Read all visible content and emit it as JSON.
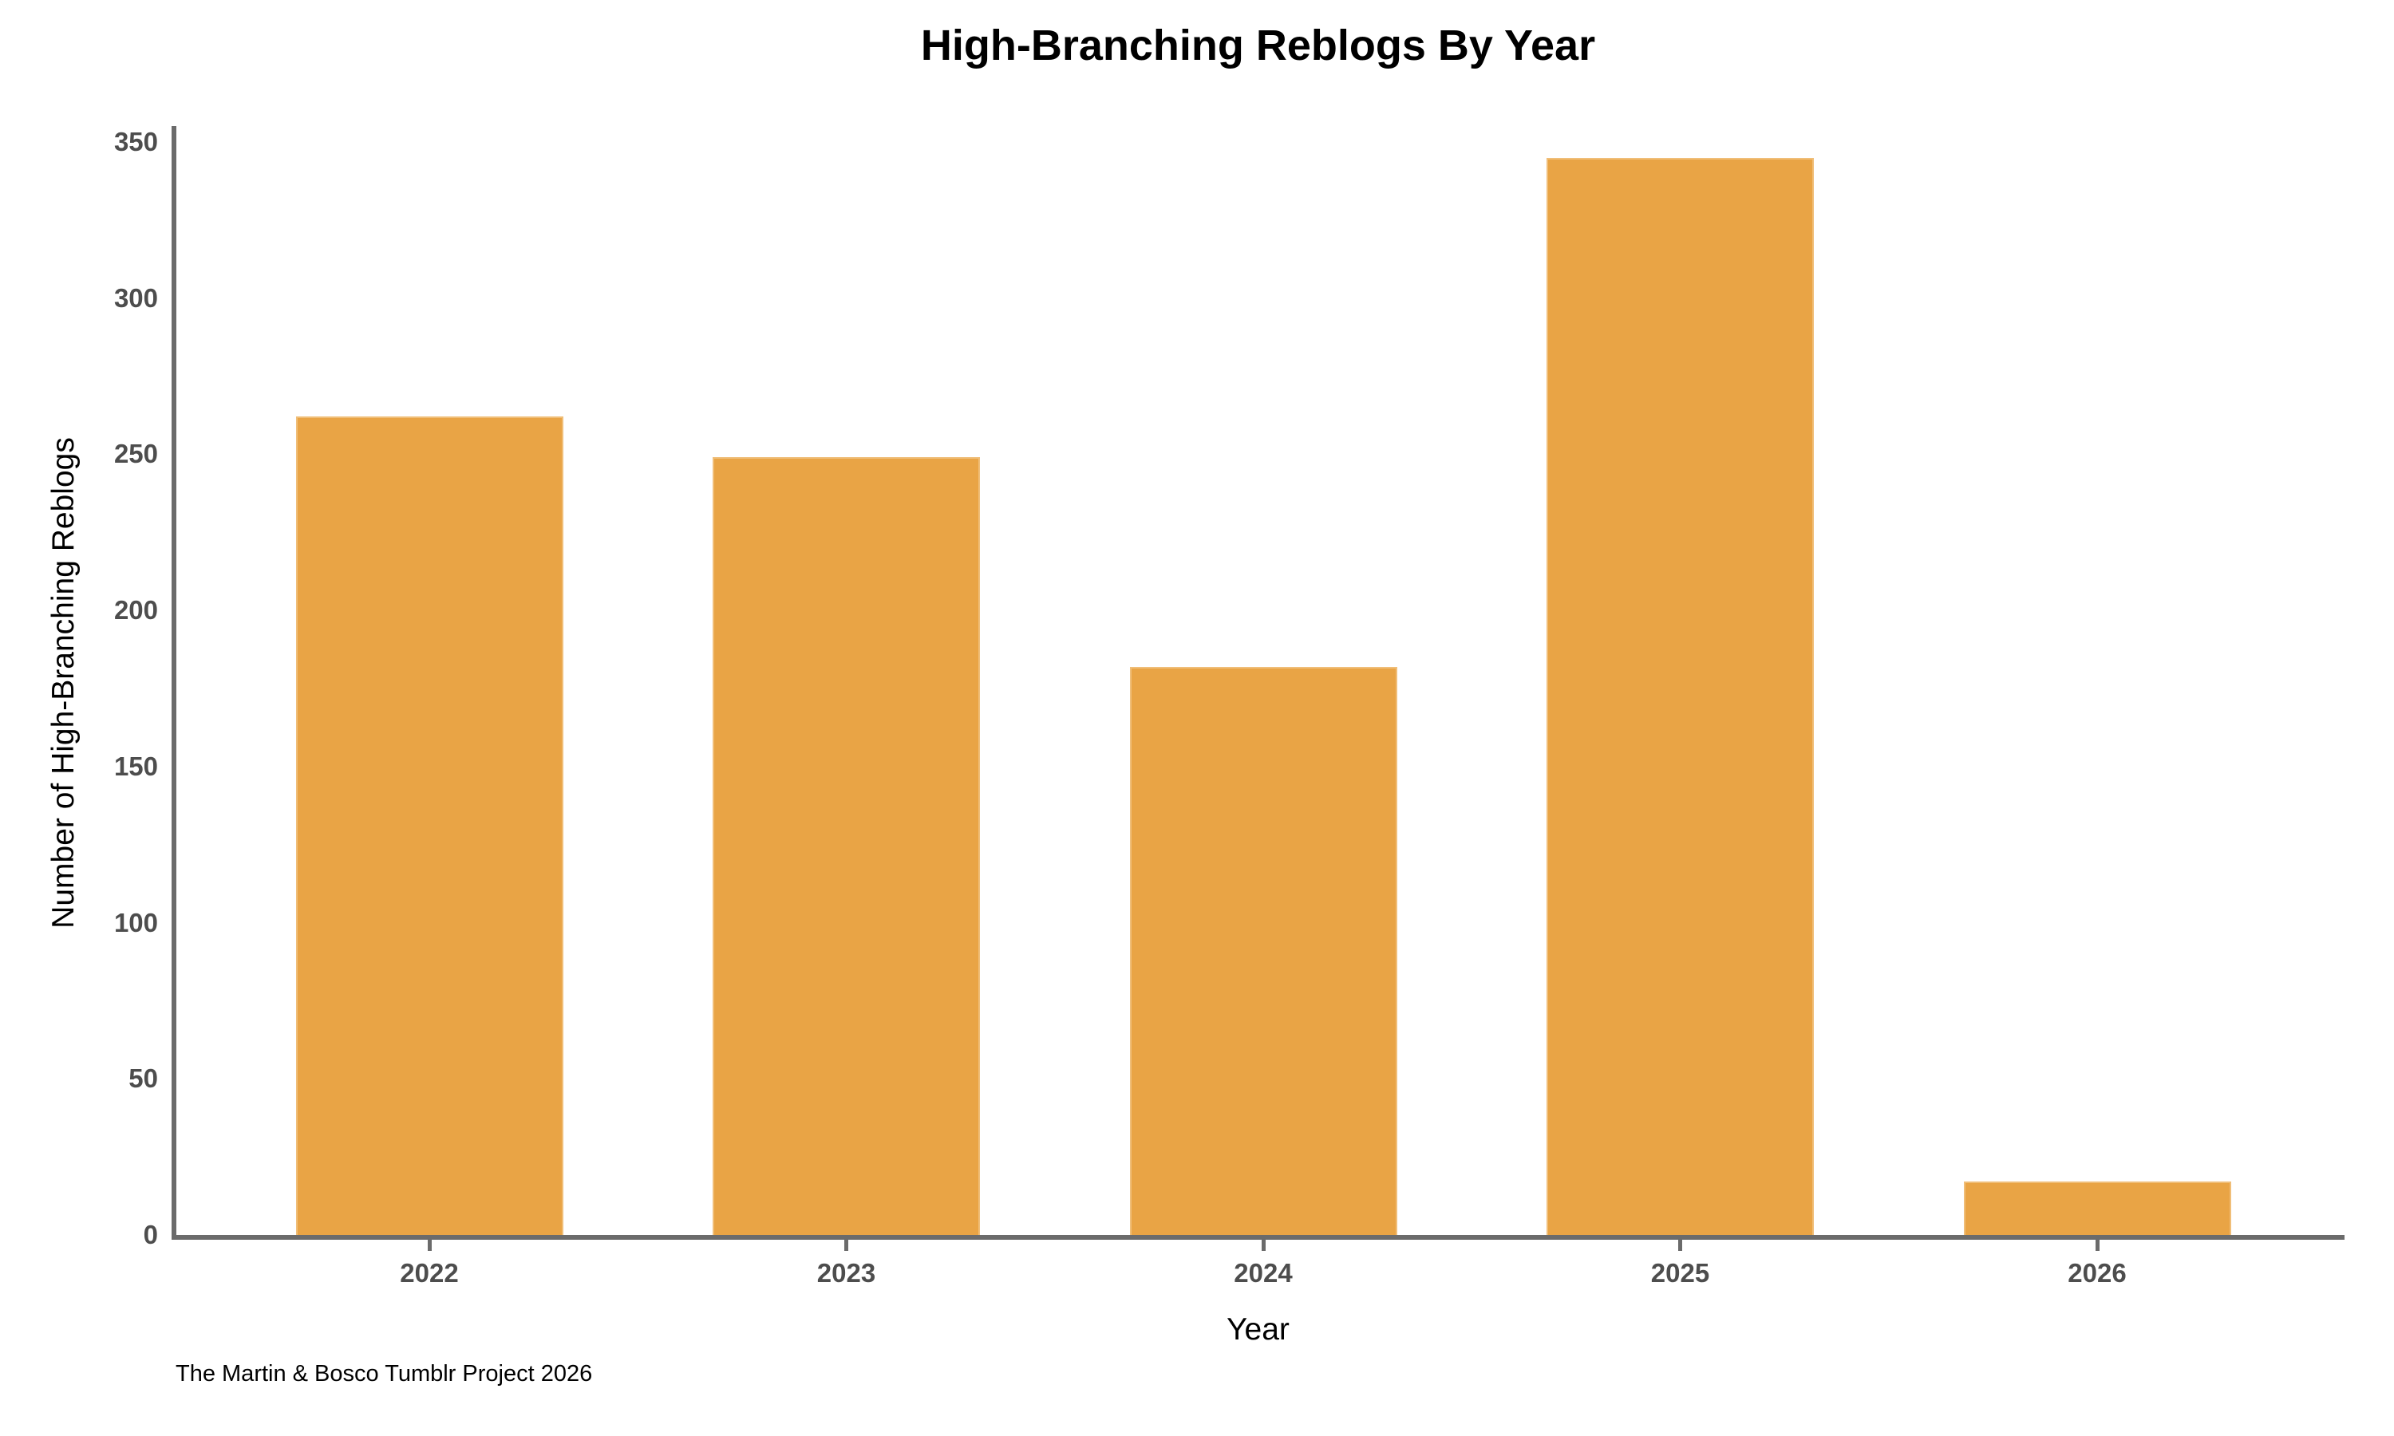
{
  "chart_data": {
    "type": "bar",
    "title": "High-Branching Reblogs By Year",
    "xlabel": "Year",
    "ylabel": "Number of High-Branching Reblogs",
    "categories": [
      "2022",
      "2023",
      "2024",
      "2025",
      "2026"
    ],
    "values": [
      262,
      249,
      182,
      345,
      17
    ],
    "yticks": [
      0,
      50,
      100,
      150,
      200,
      250,
      300,
      350
    ],
    "ylim": [
      0,
      350
    ],
    "grid": false,
    "legend": "none",
    "colors": {
      "bar_fill": "#E9A445",
      "bar_edge": "#F0BE78",
      "axis_line": "#6B6B6B",
      "tick_label": "#4D4D4D",
      "text": "#000000",
      "background": "#FFFFFF"
    }
  },
  "footer": {
    "caption": "The Martin & Bosco Tumblr Project 2026"
  }
}
